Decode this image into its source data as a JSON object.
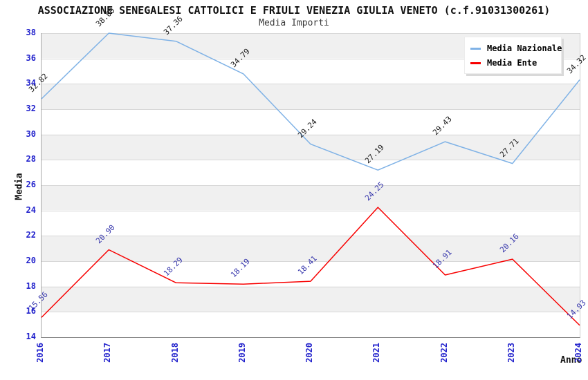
{
  "title": "ASSOCIAZIONE SENEGALESI CATTOLICI E FRIULI VENEZIA GIULIA VENETO (c.f.91031300261)",
  "subtitle": "Media Importi",
  "axes": {
    "y_label": "Media",
    "x_label": "Anno",
    "y_min": 14,
    "y_max": 38,
    "y_tick_step": 2,
    "y_ticks": [
      38,
      36,
      34,
      32,
      30,
      28,
      26,
      24,
      22,
      20,
      18,
      16,
      14
    ],
    "x_ticks": [
      "2016",
      "2017",
      "2018",
      "2019",
      "2020",
      "2021",
      "2022",
      "2023",
      "2024"
    ]
  },
  "legend": {
    "position": "top-right",
    "items": [
      "Media Nazionale",
      "Media Ente"
    ]
  },
  "colors": {
    "tick_label": "#2222cc",
    "band_gray": "#f0f0f0",
    "band_white": "#ffffff",
    "gridline": "#d8d8d8",
    "national_line": "#7fb2e6",
    "ente_line": "#f80000",
    "national_point_label": "#1c1c1c",
    "ente_point_label": "#3434ab"
  },
  "chart_data": {
    "type": "line",
    "title": "ASSOCIAZIONE SENEGALESI CATTOLICI E FRIULI VENEZIA GIULIA VENETO (c.f.91031300261)",
    "subtitle": "Media Importi",
    "xlabel": "Anno",
    "ylabel": "Media",
    "ylim": [
      14,
      38
    ],
    "grid": "horizontal-bands",
    "legend_position": "top-right",
    "categories": [
      "2016",
      "2017",
      "2018",
      "2019",
      "2020",
      "2021",
      "2022",
      "2023",
      "2024"
    ],
    "series": [
      {
        "name": "Media Nazionale",
        "color": "#7fb2e6",
        "label_color": "#1c1c1c",
        "values": [
          32.82,
          38.0,
          37.36,
          34.79,
          29.24,
          27.19,
          29.43,
          27.71,
          34.32
        ]
      },
      {
        "name": "Media Ente",
        "color": "#f80000",
        "label_color": "#3434ab",
        "values": [
          15.56,
          20.9,
          18.29,
          18.19,
          18.41,
          24.25,
          18.91,
          20.16,
          14.93
        ]
      }
    ]
  }
}
